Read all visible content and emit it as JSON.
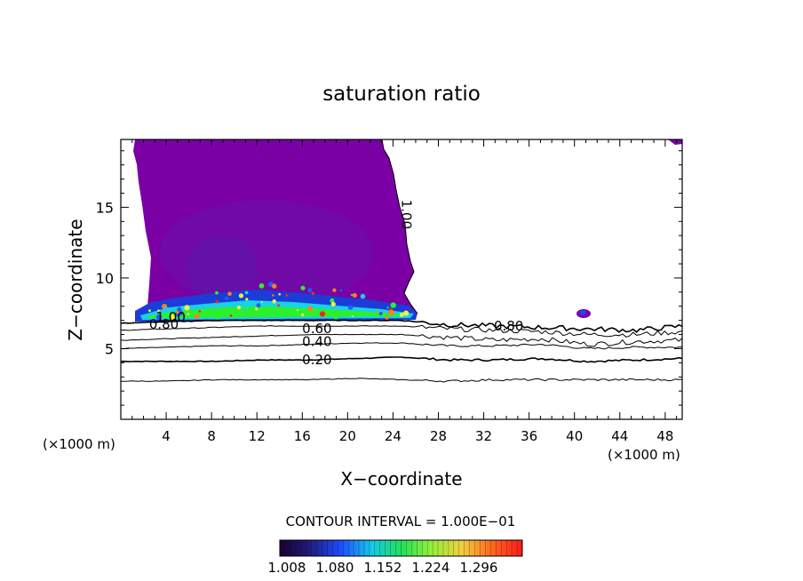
{
  "chart_data": {
    "type": "contour",
    "title": "saturation ratio",
    "xlabel": "X−coordinate",
    "ylabel": "Z−coordinate",
    "x_unit": "(×1000 m)",
    "x_ticks": [
      4,
      8,
      12,
      16,
      20,
      24,
      28,
      32,
      36,
      40,
      44,
      48
    ],
    "y_ticks": [
      5,
      10,
      15
    ],
    "xlim": [
      0,
      49.5
    ],
    "ylim": [
      0,
      19.8
    ],
    "contour_interval_text": "CONTOUR INTERVAL = 1.000E−01",
    "contour_labels": [
      {
        "text": "1.00",
        "x": 24.8,
        "y": 14.5,
        "rotate": 90
      },
      {
        "text": "1.00",
        "x": 4.4,
        "y": 6.9
      },
      {
        "text": "0.80",
        "x": 3.8,
        "y": 6.4
      },
      {
        "text": "0.80",
        "x": 34.2,
        "y": 6.3
      },
      {
        "text": "0.60",
        "x": 17.3,
        "y": 6.1
      },
      {
        "text": "0.40",
        "x": 17.3,
        "y": 5.2
      },
      {
        "text": "0.20",
        "x": 17.3,
        "y": 3.9
      }
    ],
    "contour_lines": [
      {
        "level": 0.2,
        "z": [
          4.1,
          4.1,
          4.1,
          4.2,
          4.2,
          4.3,
          4.4,
          4.2,
          4.2,
          4.3,
          4.1,
          4.2,
          4.3
        ]
      },
      {
        "level": 0.4,
        "z": [
          5.0,
          5.1,
          5.2,
          5.2,
          5.3,
          5.4,
          5.4,
          5.2,
          5.2,
          5.3,
          5.0,
          5.1,
          5.1
        ]
      },
      {
        "level": 0.6,
        "z": [
          5.6,
          5.7,
          5.8,
          5.9,
          6.0,
          6.0,
          6.0,
          5.8,
          5.6,
          5.7,
          5.3,
          5.5,
          5.6
        ]
      },
      {
        "level": 0.8,
        "z": [
          6.3,
          6.4,
          6.5,
          6.6,
          6.6,
          6.6,
          6.6,
          6.4,
          6.3,
          6.2,
          6.0,
          6.0,
          6.2
        ]
      },
      {
        "level": 1.0,
        "z": [
          6.8,
          6.9,
          7.0,
          7.0,
          7.0,
          7.0,
          7.0,
          6.7,
          6.6,
          6.5,
          6.4,
          6.3,
          6.6
        ]
      },
      {
        "level": 0.1,
        "z": [
          2.7,
          2.7,
          2.8,
          2.8,
          2.8,
          2.9,
          2.8,
          2.7,
          2.8,
          2.8,
          2.8,
          2.8,
          2.8
        ]
      }
    ],
    "colorbar": {
      "tick_labels": [
        "1.008",
        "1.080",
        "1.152",
        "1.224",
        "1.296"
      ],
      "min": 1.008,
      "max": 1.332
    },
    "fill_colors": {
      "subsaturated": "#ffffff",
      "near_saturation": "#7a00a6",
      "low": "#2a1a6e",
      "mid_blue": "#1c5cff",
      "cyan": "#18d8e8",
      "green": "#2cf02c",
      "yellow": "#f0f040",
      "orange": "#ff8020",
      "red": "#ff2020"
    }
  }
}
